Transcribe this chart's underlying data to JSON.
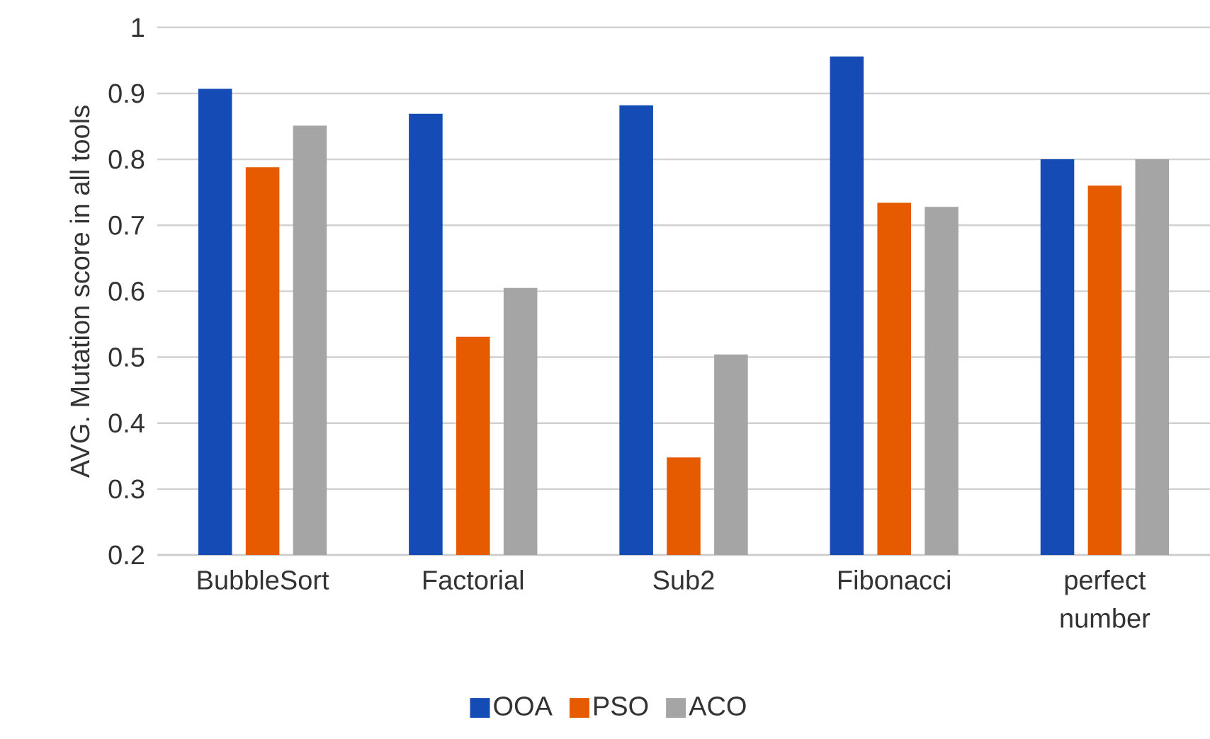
{
  "chart_data": {
    "type": "bar",
    "categories": [
      "BubbleSort",
      "Factorial",
      "Sub2",
      "Fibonacci",
      "perfect number"
    ],
    "series": [
      {
        "name": "OOA",
        "color": "#154bb4",
        "values": [
          0.907,
          0.869,
          0.882,
          0.956,
          0.8
        ]
      },
      {
        "name": "PSO",
        "color": "#e65a00",
        "values": [
          0.788,
          0.531,
          0.348,
          0.734,
          0.76
        ]
      },
      {
        "name": "ACO",
        "color": "#a5a5a5",
        "values": [
          0.851,
          0.605,
          0.504,
          0.728,
          0.8
        ]
      }
    ],
    "ylabel": "AVG. Mutation score in all tools",
    "ylim": [
      0.2,
      1
    ],
    "yticks": [
      0.2,
      0.3,
      0.4,
      0.5,
      0.6,
      0.7,
      0.8,
      0.9,
      1
    ],
    "grid": "y",
    "legend": "bottom"
  }
}
